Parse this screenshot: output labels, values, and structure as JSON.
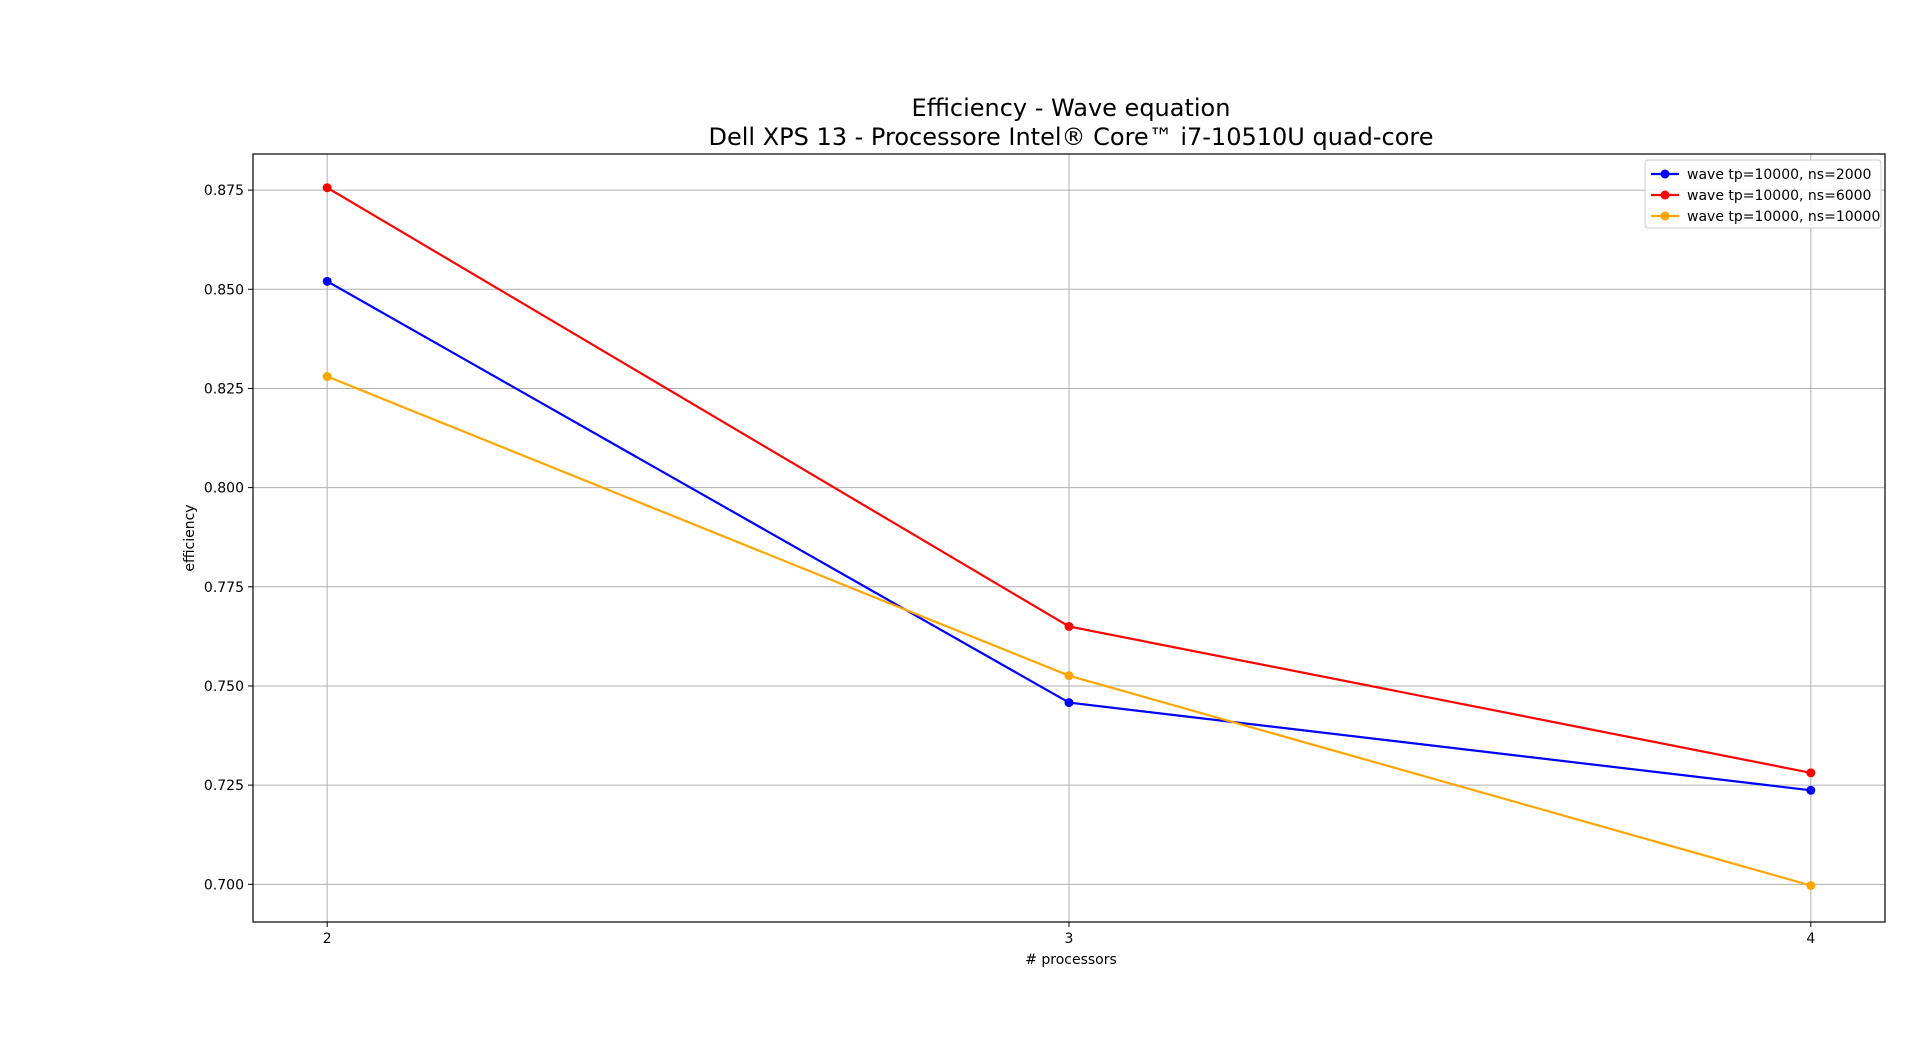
{
  "chart_data": {
    "type": "line",
    "title": "Efficiency -  Wave equation",
    "subtitle": "Dell XPS 13 - Processore Intel® Core™ i7-10510U quad-core",
    "xlabel": "# processors",
    "ylabel": "efficiency",
    "x": [
      2,
      3,
      4
    ],
    "xlim": [
      1.9,
      4.1
    ],
    "ylim": [
      0.6905,
      0.8841
    ],
    "xticks": [
      "2",
      "3",
      "4"
    ],
    "yticks": [
      "0.700",
      "0.725",
      "0.750",
      "0.775",
      "0.800",
      "0.825",
      "0.850",
      "0.875"
    ],
    "grid": true,
    "legend_position": "top-right",
    "series": [
      {
        "name": "wave tp=10000, ns=2000",
        "color": "#0000ff",
        "values": [
          0.852,
          0.7458,
          0.7237
        ]
      },
      {
        "name": "wave tp=10000, ns=6000",
        "color": "#ff0000",
        "values": [
          0.8756,
          0.765,
          0.7281
        ]
      },
      {
        "name": "wave tp=10000, ns=10000",
        "color": "#ffa500",
        "values": [
          0.828,
          0.7526,
          0.6997
        ]
      }
    ]
  }
}
